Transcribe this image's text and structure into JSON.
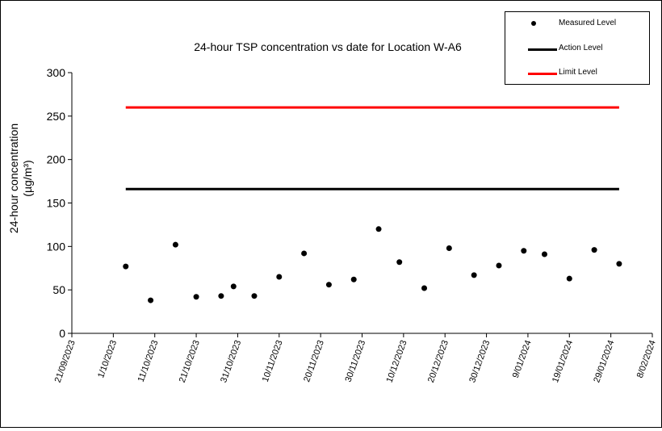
{
  "chart_data": {
    "type": "scatter",
    "title": "24-hour TSP concentration vs date for Location W-A6",
    "ylabel_line1": "24-hour concentration",
    "ylabel_line2": "(µg/m³)",
    "xlabel": "",
    "ylim": [
      0,
      300
    ],
    "yticks": [
      0,
      50,
      100,
      150,
      200,
      250,
      300
    ],
    "xlim": [
      "2023-09-21",
      "2024-02-08"
    ],
    "xtick_labels": [
      "21/09/2023",
      "1/10/2023",
      "11/10/2023",
      "21/10/2023",
      "31/10/2023",
      "10/11/2023",
      "20/11/2023",
      "30/11/2023",
      "10/12/2023",
      "20/12/2023",
      "30/12/2023",
      "9/01/2024",
      "19/01/2024",
      "29/01/2024",
      "8/02/2024"
    ],
    "xtick_dates": [
      "2023-09-21",
      "2023-10-01",
      "2023-10-11",
      "2023-10-21",
      "2023-10-31",
      "2023-11-10",
      "2023-11-20",
      "2023-11-30",
      "2023-12-10",
      "2023-12-20",
      "2023-12-30",
      "2024-01-09",
      "2024-01-19",
      "2024-01-29",
      "2024-02-08"
    ],
    "grid": false,
    "legend_position": "top-right",
    "series": [
      {
        "name": "Measured Level",
        "kind": "points",
        "color": "#000000",
        "points": [
          {
            "x": "2023-10-04",
            "y": 77
          },
          {
            "x": "2023-10-10",
            "y": 38
          },
          {
            "x": "2023-10-16",
            "y": 102
          },
          {
            "x": "2023-10-21",
            "y": 42
          },
          {
            "x": "2023-10-27",
            "y": 43
          },
          {
            "x": "2023-10-30",
            "y": 54
          },
          {
            "x": "2023-11-04",
            "y": 43
          },
          {
            "x": "2023-11-10",
            "y": 65
          },
          {
            "x": "2023-11-16",
            "y": 92
          },
          {
            "x": "2023-11-22",
            "y": 56
          },
          {
            "x": "2023-11-28",
            "y": 62
          },
          {
            "x": "2023-12-04",
            "y": 120
          },
          {
            "x": "2023-12-09",
            "y": 82
          },
          {
            "x": "2023-12-15",
            "y": 52
          },
          {
            "x": "2023-12-21",
            "y": 98
          },
          {
            "x": "2023-12-27",
            "y": 67
          },
          {
            "x": "2024-01-02",
            "y": 78
          },
          {
            "x": "2024-01-08",
            "y": 95
          },
          {
            "x": "2024-01-13",
            "y": 91
          },
          {
            "x": "2024-01-19",
            "y": 63
          },
          {
            "x": "2024-01-25",
            "y": 96
          },
          {
            "x": "2024-01-31",
            "y": 80
          }
        ]
      },
      {
        "name": "Action Level",
        "kind": "line",
        "color": "#000000",
        "points": [
          {
            "x": "2023-10-04",
            "y": 166
          },
          {
            "x": "2024-01-31",
            "y": 166
          }
        ]
      },
      {
        "name": "Limit Level",
        "kind": "line",
        "color": "#ff0000",
        "points": [
          {
            "x": "2023-10-04",
            "y": 260
          },
          {
            "x": "2024-01-31",
            "y": 260
          }
        ]
      }
    ]
  }
}
